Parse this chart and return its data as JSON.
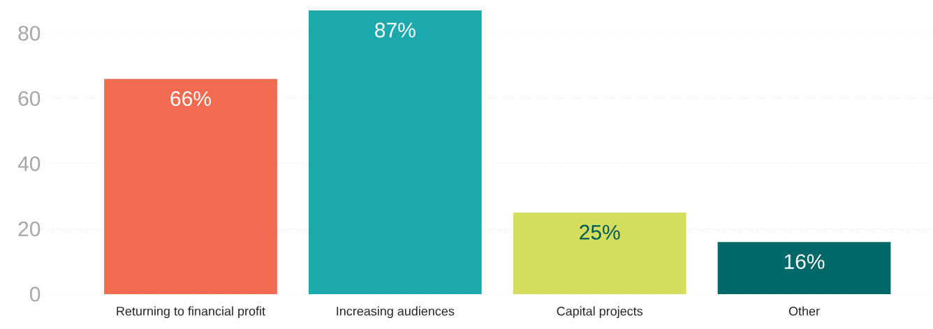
{
  "chart_data": {
    "type": "bar",
    "categories": [
      "Returning to financial profit",
      "Increasing audiences",
      "Capital projects",
      "Other"
    ],
    "values": [
      66,
      87,
      25,
      16
    ],
    "value_labels": [
      "66%",
      "87%",
      "25%",
      "16%"
    ],
    "colors": [
      "#f06b50",
      "#1ba9ae",
      "#d4de5c",
      "#006868"
    ],
    "ylim": [
      0,
      87
    ],
    "yticks": [
      0,
      20,
      40,
      60,
      80
    ],
    "grid": "y"
  }
}
